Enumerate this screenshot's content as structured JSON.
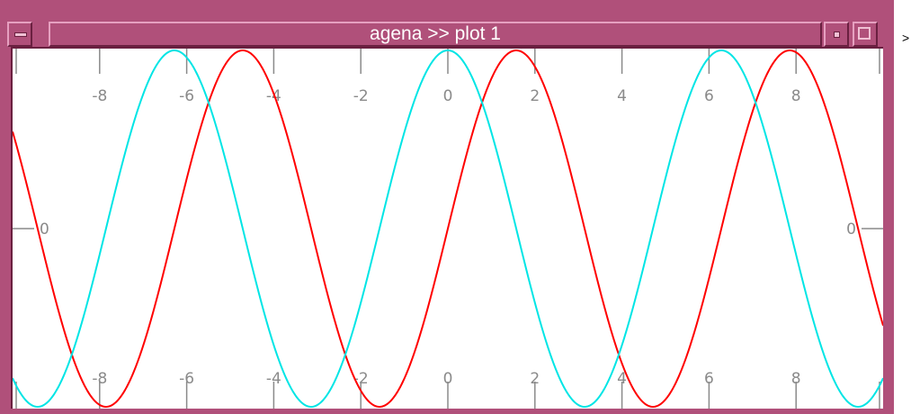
{
  "window": {
    "title": "agena >> plot 1",
    "frame_color": "#b0507a",
    "controls": {
      "menu_icon": "window-menu-icon",
      "minimize_icon": "minimize-icon",
      "maximize_icon": "maximize-icon"
    }
  },
  "console": {
    "prompt_text": ">"
  },
  "chart_data": {
    "type": "line",
    "title": "",
    "xlabel": "",
    "ylabel": "",
    "xlim": [
      -10,
      10
    ],
    "ylim": [
      -1,
      1
    ],
    "xticks": [
      -8,
      -6,
      -4,
      -2,
      0,
      2,
      4,
      6,
      8
    ],
    "xtick_labels": [
      "-8",
      "-6",
      "-4",
      "-2",
      "0",
      "2",
      "4",
      "6",
      "8"
    ],
    "yticks": [
      0
    ],
    "ytick_labels": [
      "0"
    ],
    "grid": false,
    "series": [
      {
        "function": "sin(x)",
        "color": "#ff0000",
        "x_range": [
          -10,
          10
        ]
      },
      {
        "function": "cos(x)",
        "color": "#00e5e5",
        "x_range": [
          -10,
          10
        ]
      }
    ]
  }
}
